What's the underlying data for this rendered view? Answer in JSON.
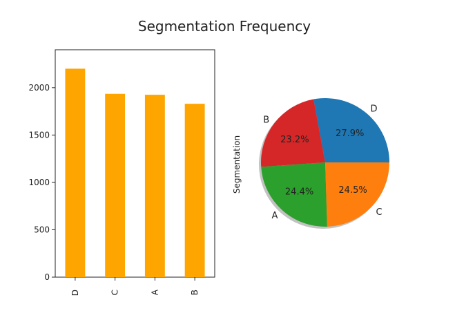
{
  "figure": {
    "title": "Segmentation Frequency"
  },
  "chart_data": [
    {
      "type": "bar",
      "categories": [
        "D",
        "C",
        "A",
        "B"
      ],
      "values": [
        2200,
        1935,
        1925,
        1830
      ],
      "ylim": [
        0,
        2400
      ],
      "yticks": [
        0,
        500,
        1000,
        1500,
        2000
      ],
      "grid": false,
      "color": "#ffa500",
      "xlabel": "",
      "ylabel": ""
    },
    {
      "type": "pie",
      "labels": [
        "D",
        "B",
        "A",
        "C"
      ],
      "values": [
        27.9,
        23.2,
        24.4,
        24.5
      ],
      "pct_labels": [
        "27.9%",
        "23.2%",
        "24.4%",
        "24.5%"
      ],
      "colors": [
        "#1f77b4",
        "#d62728",
        "#2ca02c",
        "#ff7f0e"
      ],
      "ylabel": "Segmentation",
      "shadow": true
    }
  ]
}
